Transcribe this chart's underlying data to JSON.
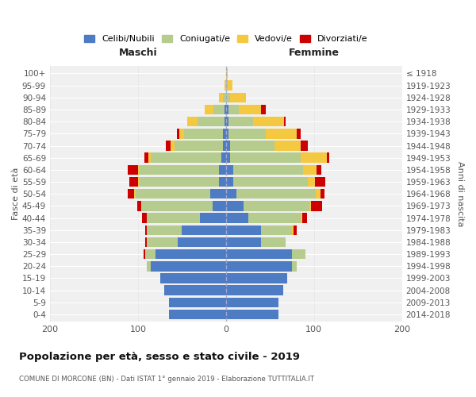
{
  "age_groups": [
    "0-4",
    "5-9",
    "10-14",
    "15-19",
    "20-24",
    "25-29",
    "30-34",
    "35-39",
    "40-44",
    "45-49",
    "50-54",
    "55-59",
    "60-64",
    "65-69",
    "70-74",
    "75-79",
    "80-84",
    "85-89",
    "90-94",
    "95-99",
    "100+"
  ],
  "birth_years": [
    "2014-2018",
    "2009-2013",
    "2004-2008",
    "1999-2003",
    "1994-1998",
    "1989-1993",
    "1984-1988",
    "1979-1983",
    "1974-1978",
    "1969-1973",
    "1964-1968",
    "1959-1963",
    "1954-1958",
    "1949-1953",
    "1944-1948",
    "1939-1943",
    "1934-1938",
    "1929-1933",
    "1924-1928",
    "1919-1923",
    "≤ 1918"
  ],
  "maschi": {
    "celibi": [
      65,
      65,
      70,
      75,
      85,
      80,
      55,
      50,
      30,
      15,
      18,
      8,
      8,
      5,
      3,
      3,
      2,
      2,
      0,
      0,
      0
    ],
    "coniugati": [
      0,
      0,
      0,
      0,
      5,
      12,
      35,
      40,
      60,
      80,
      85,
      90,
      90,
      80,
      55,
      45,
      30,
      12,
      3,
      0,
      0
    ],
    "vedovi": [
      0,
      0,
      0,
      0,
      0,
      0,
      0,
      0,
      0,
      1,
      1,
      2,
      2,
      3,
      5,
      5,
      12,
      10,
      5,
      2,
      0
    ],
    "divorziati": [
      0,
      0,
      0,
      0,
      0,
      2,
      2,
      2,
      5,
      5,
      8,
      10,
      12,
      5,
      5,
      3,
      0,
      0,
      0,
      0,
      0
    ]
  },
  "femmine": {
    "nubili": [
      60,
      60,
      65,
      70,
      75,
      75,
      40,
      40,
      25,
      20,
      12,
      8,
      8,
      5,
      5,
      3,
      3,
      3,
      0,
      0,
      0
    ],
    "coniugate": [
      0,
      0,
      0,
      0,
      5,
      15,
      28,
      35,
      60,
      75,
      90,
      85,
      80,
      80,
      50,
      42,
      28,
      12,
      5,
      2,
      0
    ],
    "vedove": [
      0,
      0,
      0,
      0,
      0,
      0,
      0,
      2,
      2,
      2,
      5,
      8,
      15,
      30,
      30,
      35,
      35,
      25,
      18,
      5,
      2
    ],
    "divorziate": [
      0,
      0,
      0,
      0,
      0,
      0,
      0,
      3,
      5,
      12,
      5,
      12,
      5,
      2,
      8,
      5,
      2,
      5,
      0,
      0,
      0
    ]
  },
  "colors": {
    "celibi": "#4D7BC4",
    "coniugati": "#B5CC8E",
    "vedovi": "#F5C842",
    "divorziati": "#CC0000"
  },
  "title": "Popolazione per età, sesso e stato civile - 2019",
  "subtitle": "COMUNE DI MORCONE (BN) - Dati ISTAT 1° gennaio 2019 - Elaborazione TUTTITALIA.IT",
  "xlabel_left": "Maschi",
  "xlabel_right": "Femmine",
  "ylabel_left": "Fasce di età",
  "ylabel_right": "Anni di nascita",
  "xlim": 200,
  "legend_labels": [
    "Celibi/Nubili",
    "Coniugati/e",
    "Vedovi/e",
    "Divorziati/e"
  ],
  "bg_color": "#ffffff",
  "plot_bg": "#f0f0f0",
  "grid_color": "#ffffff"
}
